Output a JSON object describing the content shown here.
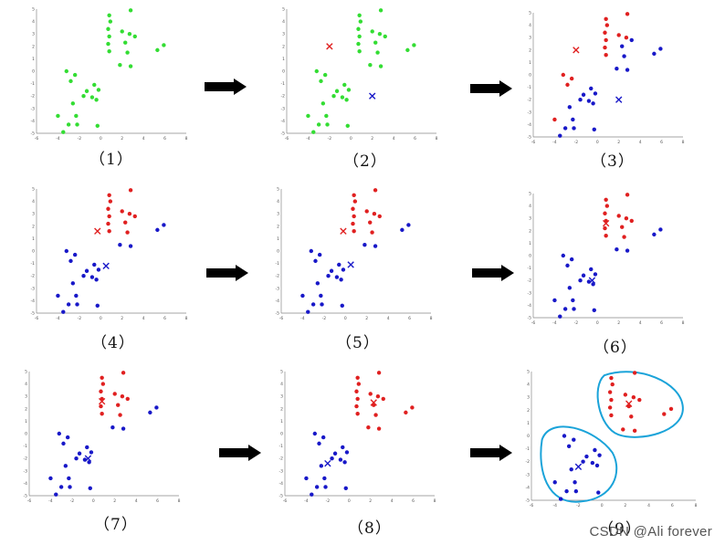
{
  "colors": {
    "initial": "#33dd33",
    "cluster_a": "#e02020",
    "cluster_b": "#1818c8",
    "outline": "#1aa3d9",
    "arrow": "#000000",
    "axis": "#888888"
  },
  "arrow_icon": "right-arrow-icon",
  "watermark": "CSDN @Ali forever",
  "panels": [
    {
      "caption": "（1）",
      "centroids": [],
      "assign": "none",
      "outlines": false
    },
    {
      "caption": "（2）",
      "centroids": [
        {
          "x": -2,
          "y": 2,
          "c": "a"
        },
        {
          "x": 2,
          "y": -2,
          "c": "b"
        }
      ],
      "assign": "none",
      "outlines": false
    },
    {
      "caption": "（3）",
      "centroids": [
        {
          "x": -2,
          "y": 2,
          "c": "a"
        },
        {
          "x": 2,
          "y": -2,
          "c": "b"
        }
      ],
      "assign": "diag",
      "outlines": false
    },
    {
      "caption": "（4）",
      "centroids": [
        {
          "x": -0.3,
          "y": 1.6,
          "c": "a"
        },
        {
          "x": 0.5,
          "y": -1.2,
          "c": "b"
        }
      ],
      "assign": "step4",
      "outlines": false
    },
    {
      "caption": "（5）",
      "centroids": [
        {
          "x": -0.2,
          "y": 1.6,
          "c": "a"
        },
        {
          "x": 0.5,
          "y": -1.1,
          "c": "b"
        }
      ],
      "assign": "step5",
      "outlines": false
    },
    {
      "caption": "（6）",
      "centroids": [
        {
          "x": 0.8,
          "y": 2.6,
          "c": "a"
        },
        {
          "x": -0.5,
          "y": -2.0,
          "c": "b"
        }
      ],
      "assign": "final",
      "outlines": false
    },
    {
      "caption": "（7）",
      "centroids": [
        {
          "x": 0.8,
          "y": 2.6,
          "c": "a"
        },
        {
          "x": -0.5,
          "y": -2.0,
          "c": "b"
        }
      ],
      "assign": "final",
      "outlines": false
    },
    {
      "caption": "（8）",
      "centroids": [
        {
          "x": 2.3,
          "y": 2.5,
          "c": "a"
        },
        {
          "x": -2.0,
          "y": -2.4,
          "c": "b"
        }
      ],
      "assign": "cluster",
      "outlines": false
    },
    {
      "caption": "（9）",
      "centroids": [
        {
          "x": 2.3,
          "y": 2.5,
          "c": "a"
        },
        {
          "x": -2.0,
          "y": -2.4,
          "c": "b"
        }
      ],
      "assign": "cluster",
      "outlines": true
    }
  ],
  "chart_data": {
    "type": "scatter",
    "xlim": [
      -6,
      8
    ],
    "ylim": [
      -5,
      5
    ],
    "x_ticks": [
      "-6",
      "-4",
      "-2",
      "0",
      "2",
      "4",
      "6",
      "8"
    ],
    "y_ticks": [
      "5",
      "4",
      "3",
      "2",
      "1",
      "0",
      "-1",
      "-2",
      "-3",
      "-4",
      "-5"
    ],
    "points": [
      [
        0.8,
        4.5
      ],
      [
        2.8,
        4.9
      ],
      [
        0.9,
        4.0
      ],
      [
        0.7,
        3.4
      ],
      [
        0.8,
        2.8
      ],
      [
        0.7,
        2.2
      ],
      [
        0.8,
        1.6
      ],
      [
        2.0,
        3.2
      ],
      [
        2.7,
        3.0
      ],
      [
        3.2,
        2.8
      ],
      [
        2.3,
        2.3
      ],
      [
        2.5,
        1.5
      ],
      [
        1.8,
        0.5
      ],
      [
        2.8,
        0.4
      ],
      [
        5.9,
        2.1
      ],
      [
        5.3,
        1.7
      ],
      [
        -3.2,
        0.0
      ],
      [
        -2.4,
        -0.3
      ],
      [
        -2.8,
        -0.8
      ],
      [
        -1.3,
        -1.6
      ],
      [
        -0.6,
        -1.1
      ],
      [
        -0.2,
        -1.5
      ],
      [
        -1.6,
        -2.0
      ],
      [
        -0.8,
        -2.1
      ],
      [
        -0.4,
        -2.3
      ],
      [
        -2.6,
        -2.6
      ],
      [
        -4.0,
        -3.6
      ],
      [
        -2.3,
        -3.6
      ],
      [
        -3.0,
        -4.3
      ],
      [
        -2.2,
        -4.3
      ],
      [
        -0.3,
        -4.4
      ],
      [
        -3.5,
        -4.9
      ]
    ]
  }
}
